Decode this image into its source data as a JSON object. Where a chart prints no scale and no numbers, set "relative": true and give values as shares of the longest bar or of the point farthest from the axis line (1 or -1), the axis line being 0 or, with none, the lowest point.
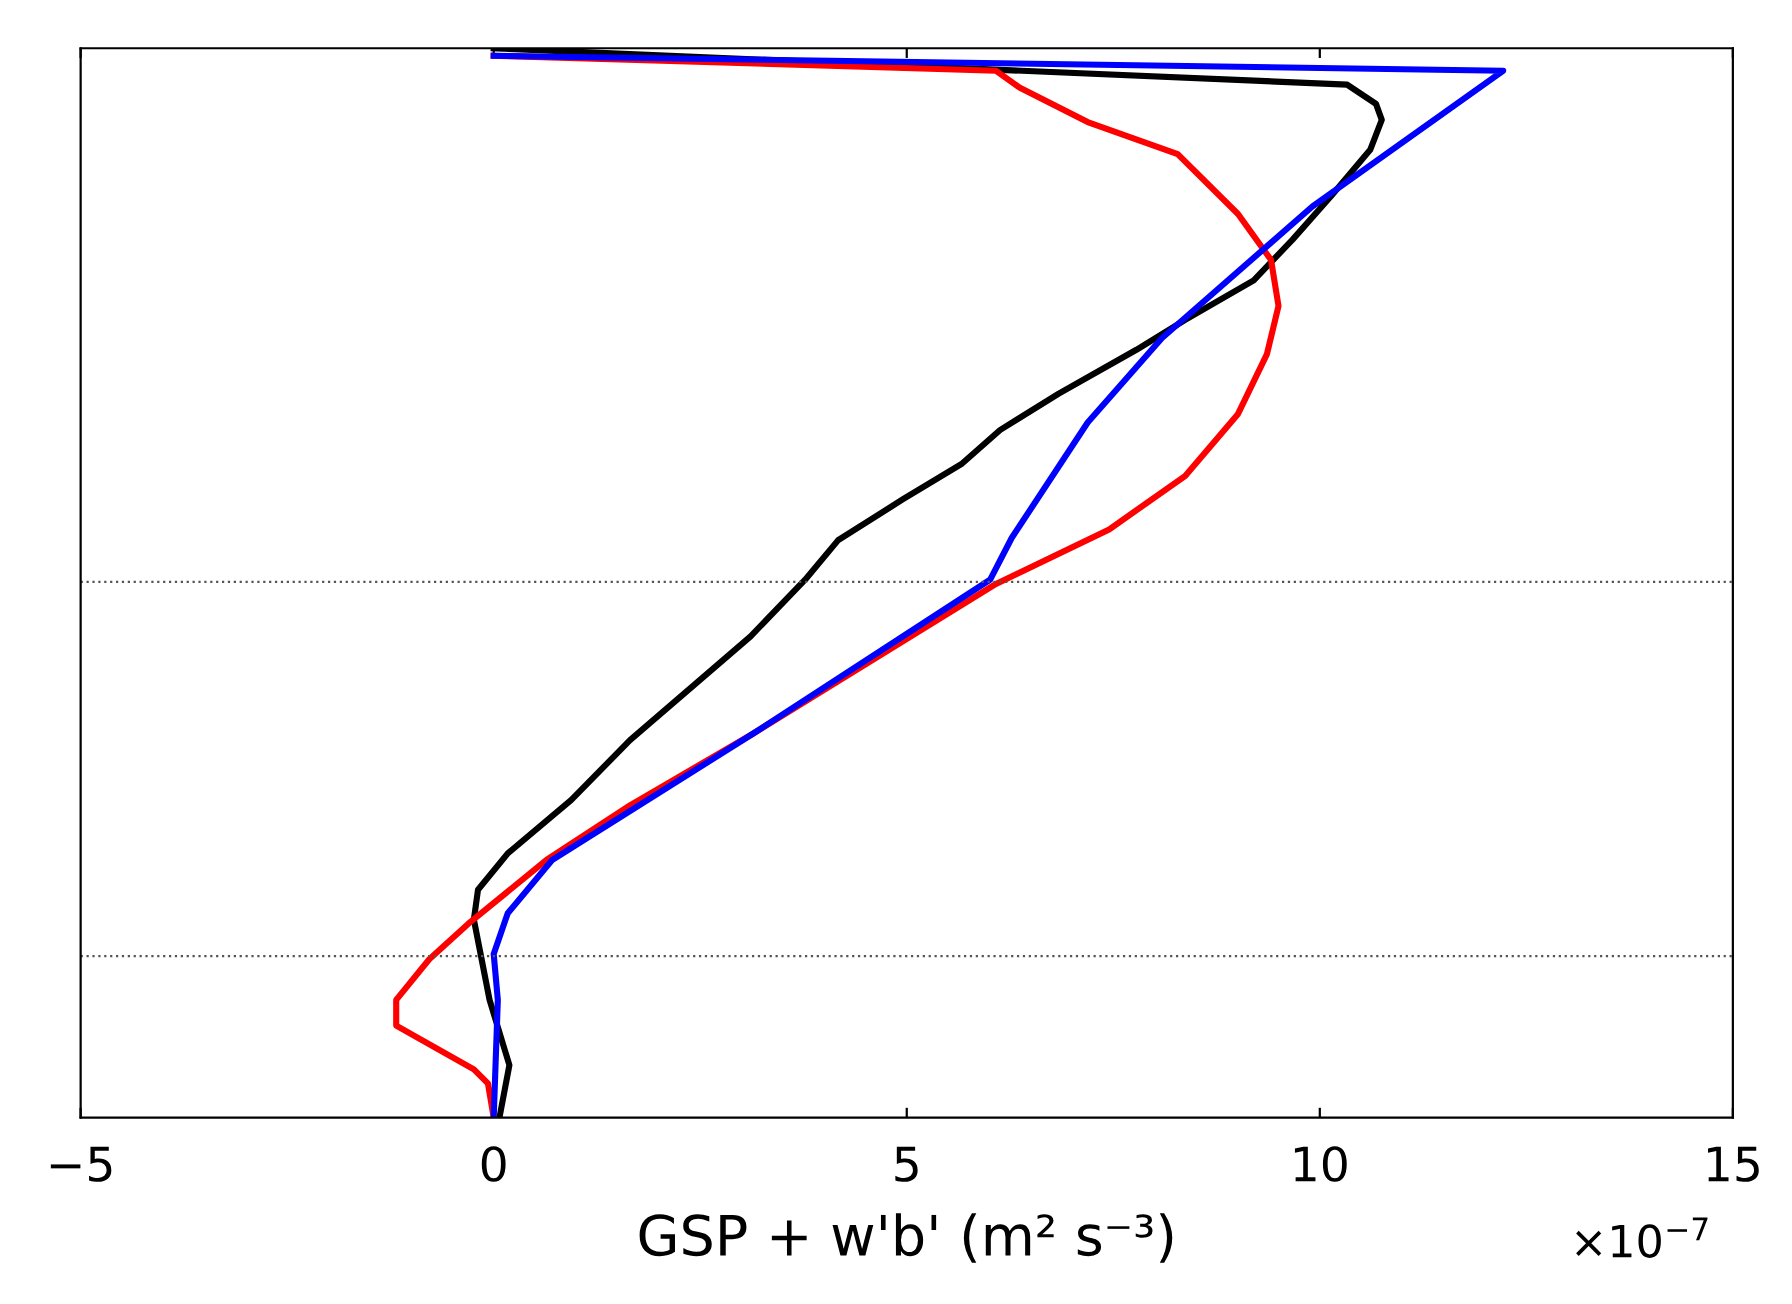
{
  "chart_data": {
    "type": "line",
    "xlabel": "GSP + w'b' (m² s⁻³)",
    "relative": true,
    "xlim": [
      -5,
      15
    ],
    "xticks": [
      {
        "value": -5,
        "label": "−5"
      },
      0,
      5,
      10,
      15
    ],
    "annotations": [
      "×10$^{−7}$"
    ],
    "marker": "none",
    "line_style": "solid",
    "grid": false,
    "legend": false,
    "ref_lines": [
      {
        "axis": "y",
        "value": 0.501,
        "line_style": "dotted",
        "color": "#555555"
      },
      {
        "axis": "y",
        "value": 0.151,
        "line_style": "dotted",
        "color": "#555555"
      }
    ],
    "series": [
      {
        "color": "#000000",
        "x": [
          0,
          10.33,
          10.68,
          10.75,
          10.61,
          10.14,
          9.67,
          9.2,
          8.37,
          7.78,
          6.84,
          6.13,
          5.66,
          4.95,
          4.17,
          3.77,
          3.11,
          1.65,
          0.94,
          0.17,
          -0.19,
          -0.24,
          -0.05,
          0.19,
          0.07
        ],
        "values": [
          1.0,
          0.966,
          0.948,
          0.933,
          0.905,
          0.862,
          0.821,
          0.783,
          0.746,
          0.718,
          0.677,
          0.643,
          0.611,
          0.578,
          0.54,
          0.503,
          0.45,
          0.353,
          0.297,
          0.247,
          0.213,
          0.185,
          0.11,
          0.049,
          0
        ]
      },
      {
        "color": "#ff0000",
        "x": [
          0,
          6.08,
          6.37,
          7.19,
          8.28,
          9.01,
          9.41,
          9.5,
          9.36,
          9.01,
          8.37,
          7.45,
          6.08,
          3.14,
          1.65,
          0.64,
          -0.31,
          -0.78,
          -1.18,
          -1.18,
          -0.24,
          -0.07,
          0
        ],
        "values": [
          0.993,
          0.979,
          0.963,
          0.931,
          0.901,
          0.845,
          0.802,
          0.759,
          0.714,
          0.658,
          0.6,
          0.55,
          0.499,
          0.359,
          0.292,
          0.241,
          0.181,
          0.148,
          0.11,
          0.086,
          0.045,
          0.032,
          0
        ]
      },
      {
        "color": "#0000ff",
        "x": [
          0,
          12.22,
          9.91,
          8.09,
          7.19,
          6.27,
          6.01,
          3.14,
          0.71,
          0.17,
          0,
          0.05,
          0
        ],
        "values": [
          0.993,
          0.979,
          0.852,
          0.729,
          0.65,
          0.542,
          0.503,
          0.359,
          0.241,
          0.191,
          0.153,
          0.11,
          0
        ]
      }
    ]
  }
}
